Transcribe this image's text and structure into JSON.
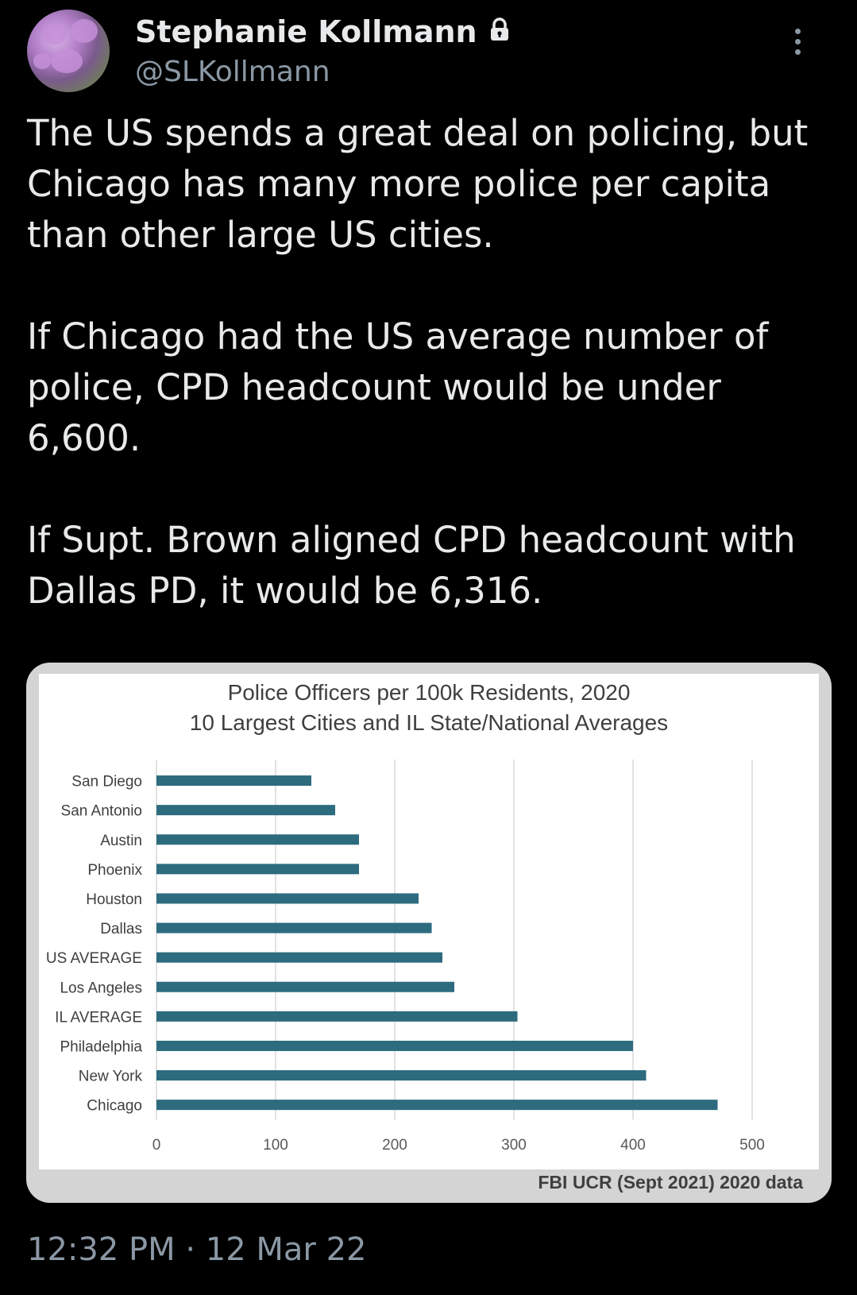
{
  "author": {
    "name": "Stephanie Kollmann",
    "handle": "@SLKollmann",
    "protected_icon": "lock-icon"
  },
  "tweet": {
    "text": "The US spends a great deal on policing, but Chicago has many more police per capita than other large US cities.\n\nIf Chicago had the US average number of police, CPD headcount would be under 6,600.\n\nIf Supt. Brown aligned CPD headcount with Dallas PD, it would be 6,316.",
    "timestamp": "12:32 PM · 12 Mar 22"
  },
  "chart_data": {
    "type": "bar",
    "orientation": "horizontal",
    "title": "Police Officers per 100k Residents, 2020",
    "subtitle": "10 Largest Cities and IL State/National Averages",
    "source": "FBI UCR (Sept 2021) 2020 data",
    "categories": [
      "San Diego",
      "San Antonio",
      "Austin",
      "Phoenix",
      "Houston",
      "Dallas",
      "US AVERAGE",
      "Los Angeles",
      "IL AVERAGE",
      "Philadelphia",
      "New York",
      "Chicago"
    ],
    "values": [
      130,
      150,
      170,
      170,
      220,
      231,
      240,
      250,
      303,
      400,
      411,
      471
    ],
    "xlim": [
      0,
      500
    ],
    "xticks": [
      "0",
      "100",
      "200",
      "300",
      "400",
      "500"
    ],
    "bar_color": "#2d6b7f",
    "grid": "vertical"
  },
  "colors": {
    "background": "#000000",
    "text": "#e7e9ea",
    "secondary_text": "#8b98a5"
  }
}
